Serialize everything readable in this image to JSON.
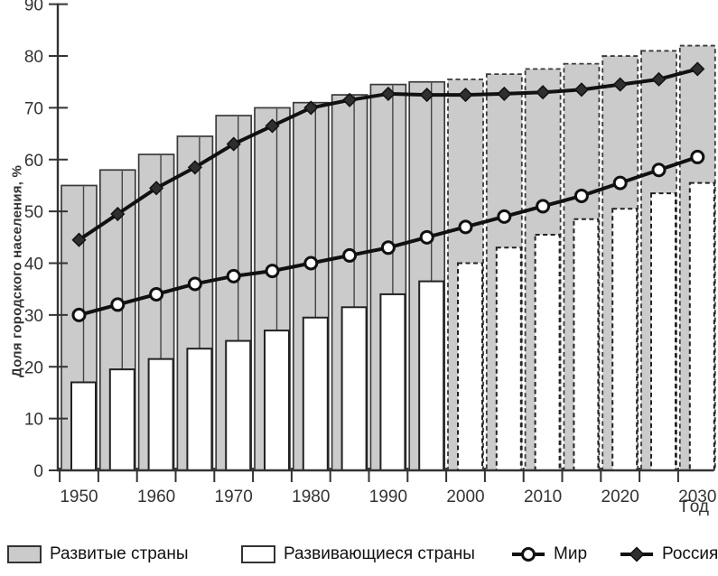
{
  "figure": {
    "background": "#ffffff",
    "xlabel": "Год",
    "ylabel": "Доля городского населения, %"
  },
  "legend": {
    "developed_label": "Развитые страны",
    "developing_label": "Развивающиеся страны",
    "world_label": "Мир",
    "russia_label": "Россия"
  },
  "colors": {
    "bar_gray_fill": "#cbcbcb",
    "bar_white_fill": "#ffffff",
    "bar_border": "#3a3a3a",
    "white_bar_border": "#222222",
    "line_color": "#111111",
    "marker_diamond_fill": "#2f2f2f",
    "marker_circle_fill": "#ffffff",
    "axis_color": "#333333"
  },
  "chart_data": {
    "type": "bar",
    "subtype": "bars-with-overlay-lines",
    "title": "",
    "xlabel": "Год",
    "ylabel": "Доля городского населения, %",
    "ylim": [
      0,
      90
    ],
    "ytick_step": 10,
    "yticks": [
      0,
      10,
      20,
      30,
      40,
      50,
      60,
      70,
      80,
      90
    ],
    "grid": false,
    "legend_position": "bottom",
    "categories": [
      1950,
      1955,
      1960,
      1965,
      1970,
      1975,
      1980,
      1985,
      1990,
      1995,
      2000,
      2005,
      2010,
      2015,
      2020,
      2025,
      2030
    ],
    "xtick_labels_shown": [
      "1950",
      "1960",
      "1970",
      "1980",
      "1990",
      "2000",
      "2010",
      "2020",
      "2030"
    ],
    "forecast_start_index": 10,
    "forecast_style": "dashed-borders",
    "series": [
      {
        "name": "Развитые страны",
        "type": "bar",
        "style": "gray",
        "values": [
          55,
          58,
          61,
          64.5,
          68.5,
          70,
          71,
          72.5,
          74.5,
          75,
          75.5,
          76.5,
          77.5,
          78.5,
          80,
          81,
          82
        ]
      },
      {
        "name": "Развивающиеся страны",
        "type": "bar",
        "style": "white",
        "values": [
          17,
          19.5,
          21.5,
          23.5,
          25,
          27,
          29.5,
          31.5,
          34,
          36.5,
          40,
          43,
          45.5,
          48.5,
          50.5,
          53.5,
          55.5
        ]
      },
      {
        "name": "Мир",
        "type": "line",
        "marker": "circle-open",
        "values": [
          30,
          32,
          34,
          36,
          37.5,
          38.5,
          40,
          41.5,
          43,
          45,
          47,
          49,
          51,
          53,
          55.5,
          58,
          60.5
        ]
      },
      {
        "name": "Россия",
        "type": "line",
        "marker": "diamond-filled",
        "values": [
          44.5,
          49.5,
          54.5,
          58.5,
          63,
          66.5,
          70,
          71.5,
          72.7,
          72.5,
          72.5,
          72.7,
          73,
          73.5,
          74.5,
          75.5,
          77.5
        ]
      }
    ]
  }
}
